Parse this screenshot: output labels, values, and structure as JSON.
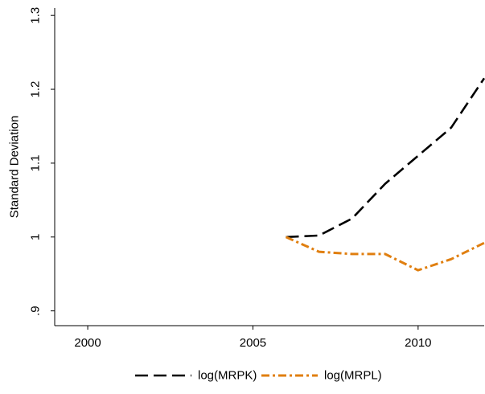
{
  "chart_data": {
    "type": "line",
    "title": "",
    "xlabel": "",
    "ylabel": "Standard Deviation",
    "xlim": [
      1999,
      2012
    ],
    "ylim": [
      0.88,
      1.31
    ],
    "x_ticks": [
      {
        "value": 2000,
        "label": "2000"
      },
      {
        "value": 2005,
        "label": "2005"
      },
      {
        "value": 2010,
        "label": "2010"
      }
    ],
    "y_ticks": [
      {
        "value": 0.9,
        "label": ".9"
      },
      {
        "value": 1.0,
        "label": "1"
      },
      {
        "value": 1.1,
        "label": "1.1"
      },
      {
        "value": 1.2,
        "label": "1.2"
      },
      {
        "value": 1.3,
        "label": "1.3"
      }
    ],
    "grid": false,
    "legend_position": "bottom",
    "series": [
      {
        "name": "log(MRPK)",
        "color": "#000000",
        "dash": "long-dash",
        "x": [
          2006,
          2007,
          2008,
          2009,
          2010,
          2011,
          2012
        ],
        "y": [
          1.0,
          1.002,
          1.025,
          1.072,
          1.11,
          1.148,
          1.215
        ]
      },
      {
        "name": "log(MRPL)",
        "color": "#e07f10",
        "dash": "dash-dot",
        "x": [
          2006,
          2007,
          2008,
          2009,
          2010,
          2011,
          2012
        ],
        "y": [
          1.0,
          0.98,
          0.977,
          0.977,
          0.955,
          0.97,
          0.992
        ]
      }
    ]
  }
}
